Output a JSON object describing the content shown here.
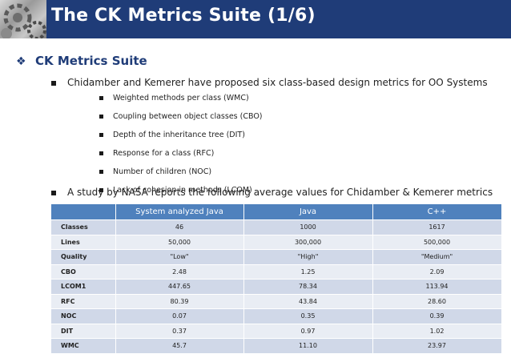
{
  "slide": {
    "title": "The CK Metrics Suite (1/6)",
    "section_heading": "CK Metrics Suite",
    "intro_bullet": "Chidamber and Kemerer have proposed six class-based design metrics for OO Systems",
    "metrics_list": [
      "Weighted methods per class (WMC)",
      "Coupling between object classes (CBO)",
      "Depth of the inheritance tree (DIT)",
      "Response for a class (RFC)",
      "Number of children (NOC)",
      "Lack of cohesion in methods (LCOM)"
    ],
    "study_bullet": "A study by NASA reports the following average values for Chidamber & Kemerer metrics"
  },
  "table": {
    "headers": [
      "",
      "System analyzed Java",
      "Java",
      "C++"
    ],
    "rows": [
      [
        "Classes",
        "46",
        "1000",
        "1617"
      ],
      [
        "Lines",
        "50,000",
        "300,000",
        "500,000"
      ],
      [
        "Quality",
        "\"Low\"",
        "\"High\"",
        "\"Medium\""
      ],
      [
        "CBO",
        "2.48",
        "1.25",
        "2.09"
      ],
      [
        "LCOM1",
        "447.65",
        "78.34",
        "113.94"
      ],
      [
        "RFC",
        "80.39",
        "43.84",
        "28.60"
      ],
      [
        "NOC",
        "0.07",
        "0.35",
        "0.39"
      ],
      [
        "DIT",
        "0.37",
        "0.97",
        "1.02"
      ],
      [
        "WMC",
        "45.7",
        "11.10",
        "23.97"
      ]
    ]
  },
  "colors": {
    "header_bg": "#1f3c78",
    "table_header_bg": "#4f81bd",
    "row_dark": "#d0d8e8",
    "row_light": "#e9edf4"
  }
}
